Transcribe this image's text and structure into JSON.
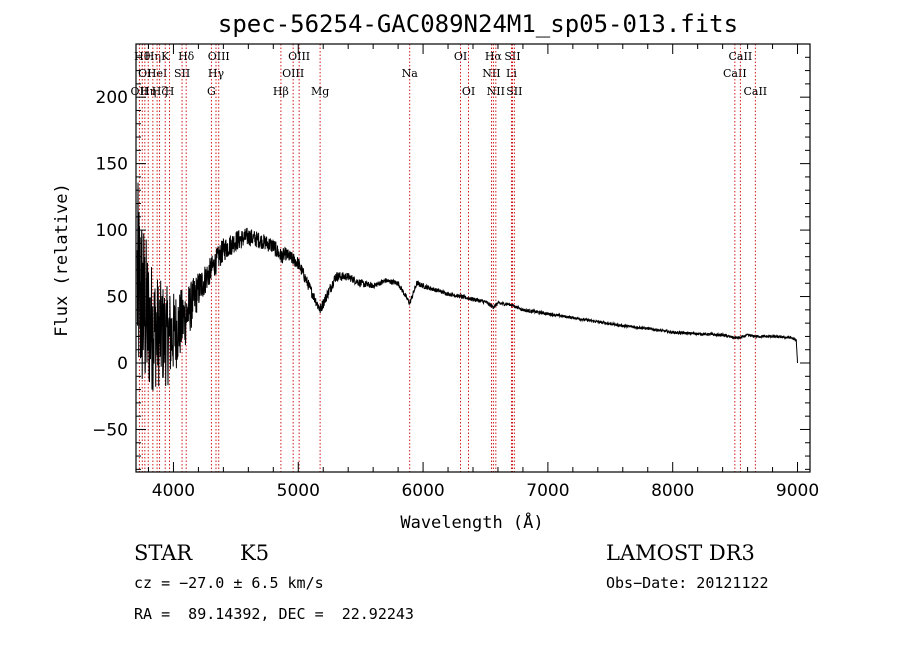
{
  "chart_data": {
    "type": "line",
    "title": "spec-56254-GAC089N24M1_sp05-013.fits",
    "xlabel": "Wavelength (Å)",
    "ylabel": "Flux (relative)",
    "xlim": [
      3700,
      9100
    ],
    "ylim": [
      -82,
      240
    ],
    "xticks": [
      4000,
      5000,
      6000,
      7000,
      8000,
      9000
    ],
    "xtick_labels": [
      "4000",
      "5000",
      "6000",
      "7000",
      "8000",
      "9000"
    ],
    "yticks": [
      -50,
      0,
      50,
      100,
      150,
      200
    ],
    "ytick_labels": [
      "−50",
      "0",
      "50",
      "100",
      "150",
      "200"
    ],
    "spectrum_anchors": {
      "wavelength": [
        3710,
        3760,
        3800,
        3850,
        3900,
        3950,
        4000,
        4100,
        4200,
        4300,
        4400,
        4500,
        4600,
        4700,
        4800,
        4862,
        4900,
        5000,
        5100,
        5175,
        5250,
        5300,
        5400,
        5500,
        5600,
        5700,
        5800,
        5893,
        5950,
        6000,
        6100,
        6200,
        6300,
        6400,
        6500,
        6563,
        6600,
        6700,
        6800,
        7000,
        7200,
        7400,
        7600,
        7800,
        8000,
        8200,
        8400,
        8498,
        8542,
        8600,
        8662,
        8800,
        8950,
        8990,
        9000
      ],
      "flux": [
        60,
        40,
        30,
        25,
        22,
        20,
        22,
        35,
        55,
        70,
        85,
        92,
        95,
        92,
        88,
        80,
        82,
        75,
        55,
        40,
        55,
        65,
        65,
        60,
        58,
        62,
        60,
        45,
        60,
        58,
        55,
        52,
        50,
        48,
        46,
        42,
        45,
        44,
        40,
        37,
        34,
        31,
        28,
        26,
        23,
        22,
        21,
        19,
        19,
        21,
        20,
        20,
        19,
        17,
        0
      ],
      "noise": [
        80,
        70,
        55,
        45,
        40,
        38,
        32,
        22,
        14,
        10,
        9,
        8,
        7,
        6,
        6,
        6,
        5,
        5,
        4,
        4,
        4,
        4,
        3,
        3,
        2,
        2,
        2,
        2,
        2,
        2,
        1.5,
        1.5,
        1.5,
        1.5,
        1.5,
        1.5,
        1.5,
        1.2,
        1.2,
        1.2,
        1,
        1,
        1,
        1,
        1,
        1,
        1,
        1,
        1,
        1,
        1,
        1,
        1,
        1,
        0
      ]
    },
    "line_markers": [
      {
        "wavelength": 3727,
        "label": "OII",
        "row": 3
      },
      {
        "wavelength": 3750,
        "label": "Hθ",
        "row": 1
      },
      {
        "wavelength": 3771,
        "label": "OI",
        "row": 2
      },
      {
        "wavelength": 3798,
        "label": "Hη",
        "row": 3
      },
      {
        "wavelength": 3835,
        "label": "Hη",
        "row": 1
      },
      {
        "wavelength": 3869,
        "label": "HeI",
        "row": 2
      },
      {
        "wavelength": 3889,
        "label": "Hζ",
        "row": 3
      },
      {
        "wavelength": 3934,
        "label": "K",
        "row": 1
      },
      {
        "wavelength": 3969,
        "label": "H",
        "row": 3
      },
      {
        "wavelength": 4069,
        "label": "SII",
        "row": 2
      },
      {
        "wavelength": 4102,
        "label": "Hδ",
        "row": 1
      },
      {
        "wavelength": 4304,
        "label": "G",
        "row": 3
      },
      {
        "wavelength": 4341,
        "label": "Hγ",
        "row": 2
      },
      {
        "wavelength": 4363,
        "label": "OIII",
        "row": 1
      },
      {
        "wavelength": 4861,
        "label": "Hβ",
        "row": 3
      },
      {
        "wavelength": 4959,
        "label": "OIII",
        "row": 2
      },
      {
        "wavelength": 5007,
        "label": "OIII",
        "row": 1
      },
      {
        "wavelength": 5175,
        "label": "Mg",
        "row": 3
      },
      {
        "wavelength": 5893,
        "label": "Na",
        "row": 2
      },
      {
        "wavelength": 6300,
        "label": "OI",
        "row": 1
      },
      {
        "wavelength": 6364,
        "label": "OI",
        "row": 3
      },
      {
        "wavelength": 6548,
        "label": "NII",
        "row": 2
      },
      {
        "wavelength": 6563,
        "label": "Hα",
        "row": 1
      },
      {
        "wavelength": 6583,
        "label": "NII",
        "row": 3
      },
      {
        "wavelength": 6708,
        "label": "Li",
        "row": 2
      },
      {
        "wavelength": 6716,
        "label": "SII",
        "row": 1
      },
      {
        "wavelength": 6731,
        "label": "SII",
        "row": 3
      },
      {
        "wavelength": 8498,
        "label": "CaII",
        "row": 2
      },
      {
        "wavelength": 8542,
        "label": "CaII",
        "row": 1
      },
      {
        "wavelength": 8662,
        "label": "CaII",
        "row": 3
      }
    ],
    "marker_color": "#cc0000",
    "line_color": "#000000"
  },
  "info": {
    "class": "STAR",
    "subclass": "K5",
    "survey": "LAMOST DR3",
    "cz": "cz = −27.0 ± 6.5 km/s",
    "obs_date": "Obs−Date: 20121122",
    "coords": "RA =  89.14392, DEC =  22.92243"
  }
}
